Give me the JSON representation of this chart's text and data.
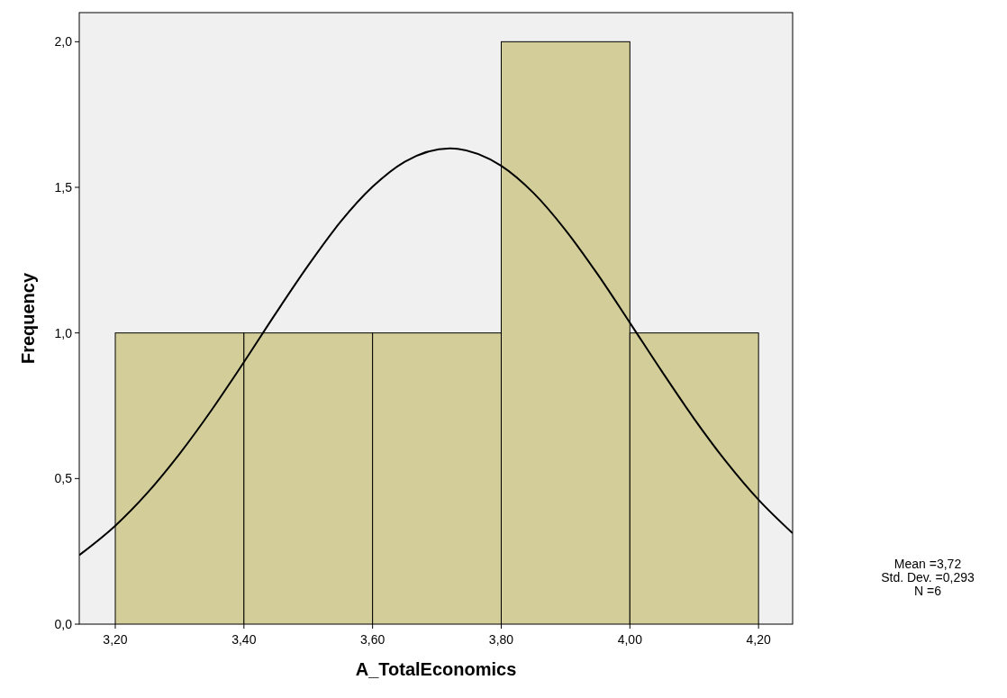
{
  "chart_data": {
    "type": "histogram",
    "xlabel": "A_TotalEconomics",
    "ylabel": "Frequency",
    "bins": [
      3.2,
      3.4,
      3.6,
      3.8,
      4.0,
      4.2
    ],
    "series": [
      {
        "values": [
          1,
          1,
          1,
          2,
          1
        ],
        "color": "#d3ce99"
      },
      {
        "type": "line",
        "color": "#000000",
        "x": [
          3.144,
          3.2,
          3.25,
          3.3,
          3.35,
          3.4,
          3.45,
          3.5,
          3.55,
          3.6,
          3.65,
          3.72,
          3.8,
          3.85,
          3.9,
          3.95,
          4.0,
          4.05,
          4.1,
          4.15,
          4.2,
          4.253
        ],
        "values": [
          0.237,
          0.338,
          0.451,
          0.585,
          0.736,
          0.9,
          1.069,
          1.232,
          1.381,
          1.502,
          1.588,
          1.634,
          1.574,
          1.481,
          1.353,
          1.201,
          1.035,
          0.867,
          0.705,
          0.557,
          0.427,
          0.312
        ]
      }
    ],
    "xlim": [
      3.144,
      4.253
    ],
    "ylim": [
      0,
      2.1
    ],
    "xticks": [
      {
        "value": 3.2,
        "label": "3,20"
      },
      {
        "value": 3.4,
        "label": "3,40"
      },
      {
        "value": 3.6,
        "label": "3,60"
      },
      {
        "value": 3.8,
        "label": "3,80"
      },
      {
        "value": 4.0,
        "label": "4,00"
      },
      {
        "value": 4.2,
        "label": "4,20"
      }
    ],
    "yticks": [
      {
        "value": 0,
        "label": "0,0"
      },
      {
        "value": 0.5,
        "label": "0,5"
      },
      {
        "value": 1,
        "label": "1,0"
      },
      {
        "value": 1.5,
        "label": "1,5"
      },
      {
        "value": 2,
        "label": "2,0"
      }
    ],
    "grid": false,
    "marker": "none",
    "line_style": "solid",
    "annotations": [
      "Mean =3,72",
      "Std. Dev. =0,293",
      "N =6"
    ]
  }
}
